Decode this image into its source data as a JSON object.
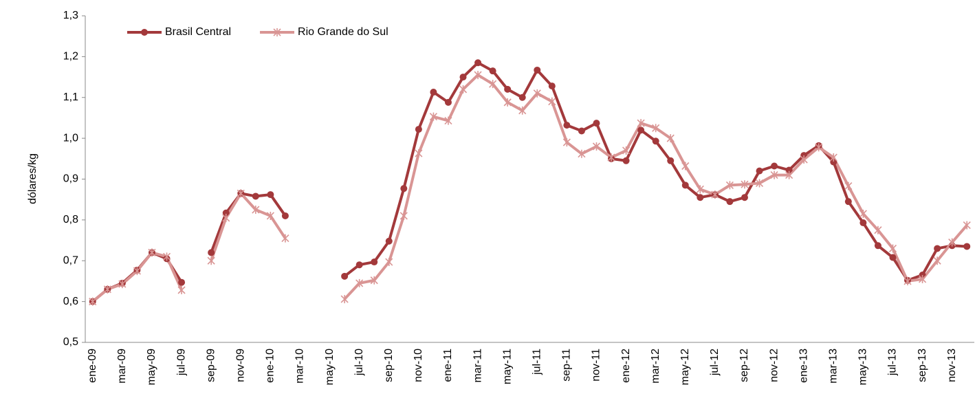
{
  "chart_data": {
    "type": "line",
    "y_label": "dólares/kg",
    "categories": [
      "ene-09",
      null,
      "mar-09",
      null,
      "may-09",
      null,
      "jul-09",
      null,
      "sep-09",
      null,
      "nov-09",
      null,
      "ene-10",
      null,
      "mar-10",
      null,
      "may-10",
      null,
      "jul-10",
      null,
      "sep-10",
      null,
      "nov-10",
      null,
      "ene-11",
      null,
      "mar-11",
      null,
      "may-11",
      null,
      "jul-11",
      null,
      "sep-11",
      null,
      "nov-11",
      null,
      "ene-12",
      null,
      "mar-12",
      null,
      "may-12",
      null,
      "jul-12",
      null,
      "sep-12",
      null,
      "nov-12",
      null,
      "ene-13",
      null,
      "mar-13",
      null,
      "may-13",
      null,
      "jul-13",
      null,
      "sep-13",
      null,
      "nov-13",
      null
    ],
    "series": [
      {
        "name": "Brasil Central",
        "color": "#a3393b",
        "marker": "circle",
        "values": [
          0.6,
          0.63,
          0.645,
          0.677,
          0.72,
          0.705,
          0.647,
          null,
          0.72,
          0.817,
          0.865,
          0.858,
          0.862,
          0.81,
          null,
          null,
          null,
          0.662,
          0.69,
          0.697,
          0.748,
          0.877,
          1.022,
          1.113,
          1.088,
          1.15,
          1.185,
          1.165,
          1.12,
          1.1,
          1.167,
          1.128,
          1.032,
          1.018,
          1.037,
          0.95,
          0.945,
          1.02,
          0.993,
          0.945,
          0.885,
          0.855,
          0.862,
          0.845,
          0.855,
          0.92,
          0.932,
          0.922,
          0.958,
          0.982,
          0.942,
          0.845,
          0.793,
          0.737,
          0.708,
          0.652,
          0.665,
          0.73,
          0.737,
          0.735
        ]
      },
      {
        "name": "Rio Grande do Sul",
        "color": "#d99594",
        "marker": "asterisk",
        "values": [
          0.6,
          0.63,
          0.643,
          0.675,
          0.72,
          0.71,
          0.628,
          null,
          0.7,
          0.805,
          0.865,
          0.825,
          0.81,
          0.755,
          null,
          null,
          null,
          0.606,
          0.645,
          0.652,
          0.697,
          0.81,
          0.963,
          1.053,
          1.043,
          1.12,
          1.155,
          1.133,
          1.088,
          1.068,
          1.11,
          1.09,
          0.99,
          0.962,
          0.98,
          0.953,
          0.97,
          1.037,
          1.025,
          1.0,
          0.932,
          0.875,
          0.862,
          0.885,
          0.887,
          0.89,
          0.91,
          0.91,
          0.948,
          0.978,
          0.953,
          0.883,
          0.815,
          0.775,
          0.73,
          0.65,
          0.655,
          0.7,
          0.745,
          0.787
        ]
      }
    ],
    "ylim": [
      0.5,
      1.3
    ],
    "yticks": [
      {
        "value": 0.5,
        "label": "0,5"
      },
      {
        "value": 0.6,
        "label": "0,6"
      },
      {
        "value": 0.7,
        "label": "0,7"
      },
      {
        "value": 0.8,
        "label": "0,8"
      },
      {
        "value": 0.9,
        "label": "0,9"
      },
      {
        "value": 1.0,
        "label": "1,0"
      },
      {
        "value": 1.1,
        "label": "1,1"
      },
      {
        "value": 1.2,
        "label": "1,2"
      },
      {
        "value": 1.3,
        "label": "1,3"
      }
    ],
    "grid": false,
    "legend": "top-left"
  }
}
